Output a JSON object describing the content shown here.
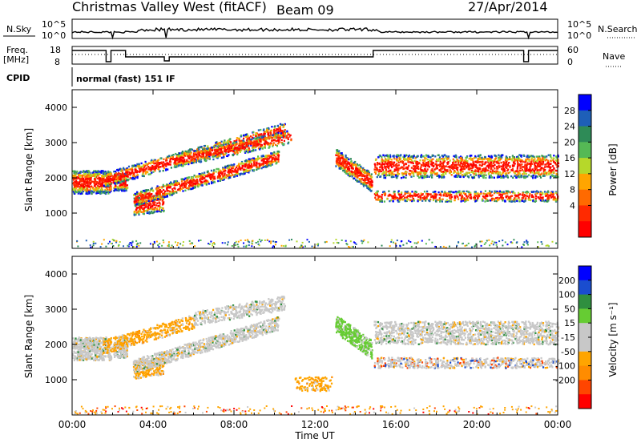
{
  "header": {
    "station": "Christmas Valley West (fitACF)",
    "beam": "Beam 09",
    "date": "27/Apr/2014",
    "mode": "normal (fast) 151 IF"
  },
  "small_panels": {
    "nsky_label": "N.Sky",
    "nsky_ticks": [
      "10^5",
      "10^0"
    ],
    "nsearch_label": "N.Search",
    "nsearch_ticks": [
      "10^5",
      "10^0"
    ],
    "freq_label_1": "Freq.",
    "freq_label_2": "[MHz]",
    "freq_ticks": [
      "18",
      "8"
    ],
    "nave_label": "Nave",
    "nave_ticks": [
      "60",
      "0"
    ],
    "cpid_label": "CPID"
  },
  "time_axis": {
    "label": "Time UT",
    "ticks": [
      "00:00",
      "04:00",
      "08:00",
      "12:00",
      "16:00",
      "20:00",
      "00:00"
    ]
  },
  "legend_colors": {
    "power": [
      "#0000ff",
      "#1e5fb8",
      "#2e8b57",
      "#55b955",
      "#b6d82a",
      "#ffa500",
      "#ff6a00",
      "#ff2a00",
      "#ff0000"
    ],
    "velocity": [
      "#0000ff",
      "#1a4dcf",
      "#2f8f3f",
      "#66cc33",
      "#c8c8c8",
      "#c8c8c8",
      "#ffa500",
      "#ff8c00",
      "#ff4500",
      "#ff0000"
    ]
  },
  "chart_data": [
    {
      "type": "heatmap",
      "title": "Power",
      "ylabel": "Slant Range [km]",
      "xlabel": "",
      "y_ticks": [
        "1000",
        "2000",
        "3000",
        "4000"
      ],
      "ylim": [
        0,
        4500
      ],
      "x_ticks": [
        "00:00",
        "04:00",
        "08:00",
        "12:00",
        "16:00",
        "20:00",
        "00:00"
      ],
      "colorbar_label": "Power [dB]",
      "colorbar_ticks": [
        "28",
        "24",
        "20",
        "16",
        "12",
        "8",
        "4"
      ],
      "colorbar_range": [
        0,
        30
      ]
    },
    {
      "type": "heatmap",
      "title": "Velocity",
      "ylabel": "Slant Range [km]",
      "xlabel": "Time UT",
      "y_ticks": [
        "1000",
        "2000",
        "3000",
        "4000"
      ],
      "ylim": [
        0,
        4500
      ],
      "x_ticks": [
        "00:00",
        "04:00",
        "08:00",
        "12:00",
        "16:00",
        "20:00",
        "00:00"
      ],
      "colorbar_label": "Velocity [m s⁻¹]",
      "colorbar_ticks": [
        "200",
        "100",
        "50",
        "15",
        "-15",
        "-50",
        "-100",
        "-200"
      ],
      "colorbar_range": [
        -250,
        250
      ]
    }
  ]
}
